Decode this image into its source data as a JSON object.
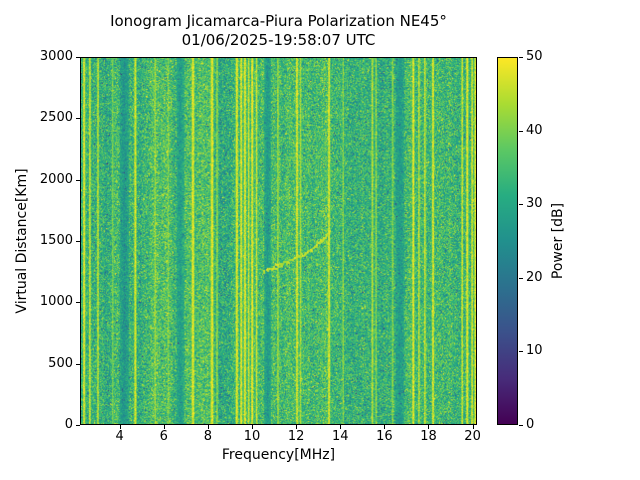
{
  "figure": {
    "title_line1": "Ionogram Jicamarca-Piura Polarization NE45°",
    "title_line2": "01/06/2025-19:58:07 UTC"
  },
  "chart_data": {
    "type": "heatmap",
    "title": "Ionogram Jicamarca-Piura Polarization NE45°",
    "subtitle": "01/06/2025-19:58:07 UTC",
    "xlabel": "Frequency[MHz]",
    "ylabel": "Virtual Distance[Km]",
    "xlim": [
      2.2,
      20.2
    ],
    "ylim": [
      0,
      3000
    ],
    "x_ticks": [
      4,
      6,
      8,
      10,
      12,
      14,
      16,
      18,
      20
    ],
    "y_ticks": [
      0,
      500,
      1000,
      1500,
      2000,
      2500,
      3000
    ],
    "grid": false,
    "colorbar": {
      "label": "Power [dB]",
      "ticks": [
        0,
        10,
        20,
        30,
        40,
        50
      ],
      "min": 0,
      "max": 50
    },
    "colormap": {
      "name": "viridis",
      "stops": [
        [
          0,
          "#440154"
        ],
        [
          0.125,
          "#472c7a"
        ],
        [
          0.25,
          "#3b518b"
        ],
        [
          0.375,
          "#2c718e"
        ],
        [
          0.5,
          "#21908d"
        ],
        [
          0.625,
          "#27ad81"
        ],
        [
          0.75,
          "#5cc863"
        ],
        [
          0.875,
          "#aadc32"
        ],
        [
          1,
          "#fde725"
        ]
      ]
    },
    "noise": {
      "mean": 33,
      "sd": 5,
      "seed": 7,
      "description": "background speckle noise ~28-40 dB over whole map"
    },
    "rfi_stripes": [
      {
        "f": 2.32,
        "w": 0.1,
        "p": 49
      },
      {
        "f": 2.58,
        "w": 0.08,
        "p": 47
      },
      {
        "f": 2.95,
        "w": 0.08,
        "p": 46
      },
      {
        "f": 3.62,
        "w": 0.06,
        "p": 41
      },
      {
        "f": 4.65,
        "w": 0.1,
        "p": 48
      },
      {
        "f": 5.55,
        "w": 0.08,
        "p": 43
      },
      {
        "f": 6.15,
        "w": 0.06,
        "p": 41
      },
      {
        "f": 7.28,
        "w": 0.12,
        "p": 49
      },
      {
        "f": 8.15,
        "w": 0.12,
        "p": 49
      },
      {
        "f": 8.38,
        "w": 0.06,
        "p": 43
      },
      {
        "f": 9.28,
        "w": 0.1,
        "p": 49
      },
      {
        "f": 9.48,
        "w": 0.1,
        "p": 48
      },
      {
        "f": 9.65,
        "w": 0.1,
        "p": 49
      },
      {
        "f": 9.82,
        "w": 0.08,
        "p": 47
      },
      {
        "f": 9.98,
        "w": 0.1,
        "p": 49
      },
      {
        "f": 10.18,
        "w": 0.08,
        "p": 47
      },
      {
        "f": 11.15,
        "w": 0.08,
        "p": 44
      },
      {
        "f": 12.02,
        "w": 0.1,
        "p": 48
      },
      {
        "f": 12.18,
        "w": 0.06,
        "p": 44
      },
      {
        "f": 13.48,
        "w": 0.1,
        "p": 48
      },
      {
        "f": 14.12,
        "w": 0.06,
        "p": 42
      },
      {
        "f": 15.45,
        "w": 0.08,
        "p": 46
      },
      {
        "f": 15.62,
        "w": 0.06,
        "p": 43
      },
      {
        "f": 16.38,
        "w": 0.06,
        "p": 42
      },
      {
        "f": 17.32,
        "w": 0.1,
        "p": 49
      },
      {
        "f": 17.58,
        "w": 0.08,
        "p": 46
      },
      {
        "f": 17.85,
        "w": 0.08,
        "p": 47
      },
      {
        "f": 18.22,
        "w": 0.1,
        "p": 48
      },
      {
        "f": 19.55,
        "w": 0.08,
        "p": 47
      },
      {
        "f": 19.78,
        "w": 0.1,
        "p": 49
      },
      {
        "f": 20.0,
        "w": 0.08,
        "p": 48
      },
      {
        "f": 20.14,
        "w": 0.08,
        "p": 48
      }
    ],
    "dark_bands": [
      {
        "f": 4.15,
        "w": 0.35,
        "p": 27
      },
      {
        "f": 6.7,
        "w": 0.3,
        "p": 28
      },
      {
        "f": 10.68,
        "w": 0.3,
        "p": 27
      },
      {
        "f": 16.7,
        "w": 0.35,
        "p": 28
      }
    ],
    "echo_trace": {
      "f_start": 10.45,
      "f_end": 13.5,
      "h_start": 1255,
      "h_end": 1470,
      "hook": 120,
      "power": 46,
      "description": "faint oblique ionospheric echo trace rising from ~1250 km at 10.5 MHz to ~1590 km at 13.5 MHz"
    }
  }
}
